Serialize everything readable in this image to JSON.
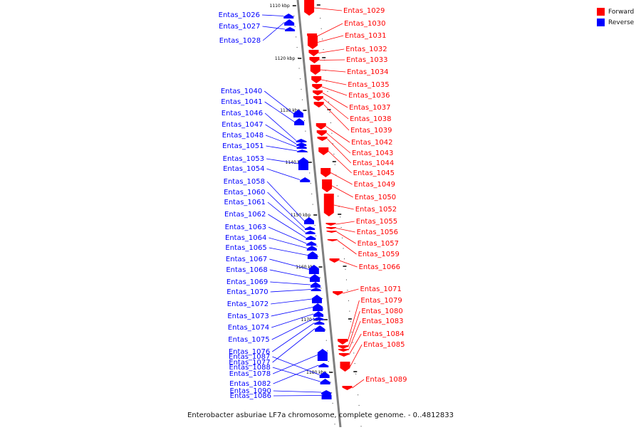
{
  "title": "Enterobacter asburiae LF7a chromosome, complete genome. - 0..4812833",
  "colors": {
    "forward": "#ff0000",
    "reverse": "#0000ff",
    "axis": "#808080"
  },
  "legend": [
    {
      "label": "Forward",
      "strand": "forward"
    },
    {
      "label": "Reverse",
      "strand": "reverse"
    }
  ],
  "ticks": [
    "1110 kbp",
    "1120 kbp",
    "1130 kbp",
    "1140 kbp",
    "1150 kbp",
    "1160 kbp",
    "1170 kbp",
    "1180 kbp"
  ],
  "genes": [
    {
      "name": "Entas_1026",
      "strand": "reverse"
    },
    {
      "name": "Entas_1027",
      "strand": "reverse"
    },
    {
      "name": "Entas_1028",
      "strand": "reverse"
    },
    {
      "name": "Entas_1029",
      "strand": "forward"
    },
    {
      "name": "Entas_1030",
      "strand": "forward"
    },
    {
      "name": "Entas_1031",
      "strand": "forward"
    },
    {
      "name": "Entas_1032",
      "strand": "forward"
    },
    {
      "name": "Entas_1033",
      "strand": "forward"
    },
    {
      "name": "Entas_1034",
      "strand": "forward"
    },
    {
      "name": "Entas_1035",
      "strand": "forward"
    },
    {
      "name": "Entas_1036",
      "strand": "forward"
    },
    {
      "name": "Entas_1037",
      "strand": "forward"
    },
    {
      "name": "Entas_1038",
      "strand": "forward"
    },
    {
      "name": "Entas_1039",
      "strand": "forward"
    },
    {
      "name": "Entas_1040",
      "strand": "reverse"
    },
    {
      "name": "Entas_1041",
      "strand": "reverse"
    },
    {
      "name": "Entas_1042",
      "strand": "forward"
    },
    {
      "name": "Entas_1043",
      "strand": "forward"
    },
    {
      "name": "Entas_1044",
      "strand": "forward"
    },
    {
      "name": "Entas_1045",
      "strand": "forward"
    },
    {
      "name": "Entas_1046",
      "strand": "reverse"
    },
    {
      "name": "Entas_1047",
      "strand": "reverse"
    },
    {
      "name": "Entas_1048",
      "strand": "reverse"
    },
    {
      "name": "Entas_1049",
      "strand": "forward"
    },
    {
      "name": "Entas_1050",
      "strand": "forward"
    },
    {
      "name": "Entas_1051",
      "strand": "reverse"
    },
    {
      "name": "Entas_1052",
      "strand": "forward"
    },
    {
      "name": "Entas_1053",
      "strand": "reverse"
    },
    {
      "name": "Entas_1054",
      "strand": "reverse"
    },
    {
      "name": "Entas_1055",
      "strand": "forward"
    },
    {
      "name": "Entas_1056",
      "strand": "forward"
    },
    {
      "name": "Entas_1057",
      "strand": "forward"
    },
    {
      "name": "Entas_1058",
      "strand": "reverse"
    },
    {
      "name": "Entas_1059",
      "strand": "forward"
    },
    {
      "name": "Entas_1060",
      "strand": "reverse"
    },
    {
      "name": "Entas_1061",
      "strand": "reverse"
    },
    {
      "name": "Entas_1062",
      "strand": "reverse"
    },
    {
      "name": "Entas_1063",
      "strand": "reverse"
    },
    {
      "name": "Entas_1064",
      "strand": "reverse"
    },
    {
      "name": "Entas_1065",
      "strand": "reverse"
    },
    {
      "name": "Entas_1066",
      "strand": "forward"
    },
    {
      "name": "Entas_1067",
      "strand": "reverse"
    },
    {
      "name": "Entas_1068",
      "strand": "reverse"
    },
    {
      "name": "Entas_1069",
      "strand": "reverse"
    },
    {
      "name": "Entas_1070",
      "strand": "reverse"
    },
    {
      "name": "Entas_1071",
      "strand": "forward"
    },
    {
      "name": "Entas_1072",
      "strand": "reverse"
    },
    {
      "name": "Entas_1073",
      "strand": "reverse"
    },
    {
      "name": "Entas_1074",
      "strand": "reverse"
    },
    {
      "name": "Entas_1075",
      "strand": "reverse"
    },
    {
      "name": "Entas_1076",
      "strand": "reverse"
    },
    {
      "name": "Entas_1077",
      "strand": "reverse"
    },
    {
      "name": "Entas_1078",
      "strand": "reverse"
    },
    {
      "name": "Entas_1079",
      "strand": "forward"
    },
    {
      "name": "Entas_1080",
      "strand": "forward"
    },
    {
      "name": "Entas_1082",
      "strand": "reverse"
    },
    {
      "name": "Entas_1083",
      "strand": "forward"
    },
    {
      "name": "Entas_1084",
      "strand": "forward"
    },
    {
      "name": "Entas_1085",
      "strand": "forward"
    },
    {
      "name": "Entas_1086",
      "strand": "reverse"
    },
    {
      "name": "Entas_1087",
      "strand": "reverse"
    },
    {
      "name": "Entas_1088",
      "strand": "reverse"
    },
    {
      "name": "Entas_1089",
      "strand": "forward"
    },
    {
      "name": "Entas_1090",
      "strand": "reverse"
    }
  ]
}
